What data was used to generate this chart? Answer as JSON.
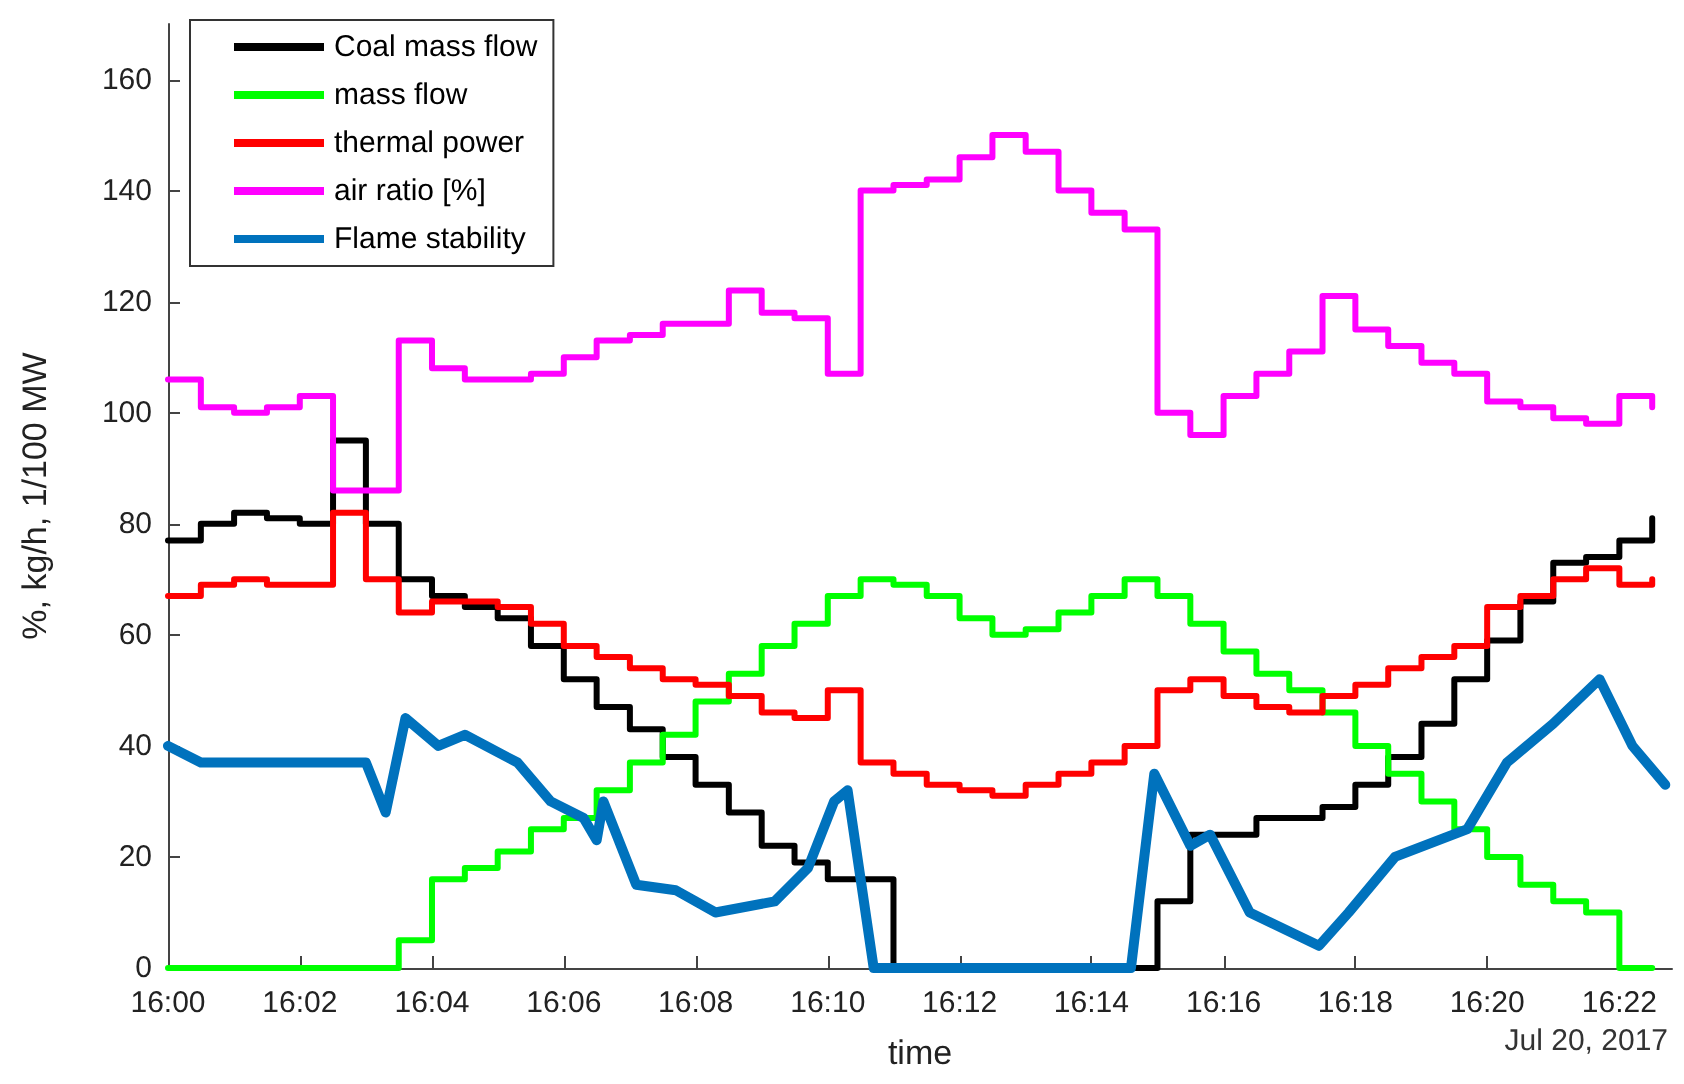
{
  "chart_data": {
    "type": "line",
    "xlabel": "time",
    "ylabel": "%, kg/h, 1/100 MW",
    "annotations": [
      "Jul 20, 2017"
    ],
    "x": [
      16,
      16.0083,
      16.0167,
      16.025,
      16.0333,
      16.0417,
      16.05,
      16.0583,
      16.0667,
      16.075,
      16.0833,
      16.0917,
      16.1,
      16.1083,
      16.1167,
      16.125,
      16.1333,
      16.1417,
      16.15,
      16.1583,
      16.1667,
      16.175,
      16.1833,
      16.1917,
      16.2,
      16.2083,
      16.2167,
      16.225,
      16.2333,
      16.2417,
      16.25,
      16.2583,
      16.2667,
      16.275,
      16.2833,
      16.2917,
      16.3,
      16.3083,
      16.3167,
      16.325,
      16.3333,
      16.3417,
      16.35,
      16.3583,
      16.3667,
      16.375
    ],
    "xlim": [
      16,
      16.38
    ],
    "xticks": [
      {
        "value": 16,
        "label": "16:00"
      },
      {
        "value": 16.0333,
        "label": "16:02"
      },
      {
        "value": 16.0667,
        "label": "16:04"
      },
      {
        "value": 16.1,
        "label": "16:06"
      },
      {
        "value": 16.1333,
        "label": "16:08"
      },
      {
        "value": 16.1667,
        "label": "16:10"
      },
      {
        "value": 16.2,
        "label": "16:12"
      },
      {
        "value": 16.2333,
        "label": "16:14"
      },
      {
        "value": 16.2667,
        "label": "16:16"
      },
      {
        "value": 16.3,
        "label": "16:18"
      },
      {
        "value": 16.3333,
        "label": "16:20"
      },
      {
        "value": 16.3667,
        "label": "16:22"
      }
    ],
    "ylim": [
      0,
      170
    ],
    "yticks": [
      0,
      20,
      40,
      60,
      80,
      100,
      120,
      140,
      160
    ],
    "grid": false,
    "legend": "top left",
    "series": [
      {
        "name": "Coal mass flow",
        "type": "step",
        "color": "#000000",
        "values": [
          77,
          80,
          82,
          81,
          80,
          95,
          80,
          70,
          67,
          65,
          63,
          58,
          52,
          47,
          43,
          38,
          33,
          28,
          22,
          19,
          16,
          16,
          0,
          0,
          0,
          0,
          0,
          0,
          0,
          0,
          12,
          24,
          24,
          27,
          27,
          29,
          33,
          38,
          44,
          52,
          59,
          66,
          73,
          74,
          77,
          81
        ]
      },
      {
        "name": "mass flow",
        "type": "step",
        "color": "#00ff00",
        "values": [
          0,
          0,
          0,
          0,
          0,
          0,
          0,
          5,
          16,
          18,
          21,
          25,
          27,
          32,
          37,
          42,
          48,
          53,
          58,
          62,
          67,
          70,
          69,
          67,
          63,
          60,
          61,
          64,
          67,
          70,
          67,
          62,
          57,
          53,
          50,
          46,
          40,
          35,
          30,
          25,
          20,
          15,
          12,
          10,
          0,
          0
        ]
      },
      {
        "name": "thermal power",
        "type": "step",
        "color": "#ff0000",
        "values": [
          67,
          69,
          70,
          69,
          69,
          82,
          70,
          64,
          66,
          66,
          65,
          62,
          58,
          56,
          54,
          52,
          51,
          49,
          46,
          45,
          50,
          37,
          35,
          33,
          32,
          31,
          33,
          35,
          37,
          40,
          50,
          52,
          49,
          47,
          46,
          49,
          51,
          54,
          56,
          58,
          65,
          67,
          70,
          72,
          69,
          70
        ]
      },
      {
        "name": "air ratio [%]",
        "type": "step",
        "color": "#ff00ff",
        "values": [
          106,
          101,
          100,
          101,
          103,
          86,
          86,
          113,
          108,
          106,
          106,
          107,
          110,
          113,
          114,
          116,
          116,
          122,
          118,
          117,
          107,
          140,
          141,
          142,
          146,
          150,
          147,
          140,
          136,
          133,
          100,
          96,
          103,
          107,
          111,
          121,
          115,
          112,
          109,
          107,
          102,
          101,
          99,
          98,
          103,
          101
        ]
      },
      {
        "name": "Flame stability",
        "color": "#0072bd",
        "x": [
          16,
          16.0083,
          16.05,
          16.055,
          16.06,
          16.0683,
          16.075,
          16.0883,
          16.0967,
          16.105,
          16.1083,
          16.11,
          16.1183,
          16.1283,
          16.1383,
          16.1533,
          16.1617,
          16.1683,
          16.1717,
          16.1783,
          16.2433,
          16.2492,
          16.2583,
          16.2633,
          16.2733,
          16.2908,
          16.2983,
          16.31,
          16.3283,
          16.3383,
          16.35,
          16.3617,
          16.37,
          16.3783
        ],
        "values": [
          40,
          37,
          37,
          28,
          45,
          40,
          42,
          37,
          30,
          27,
          23,
          30,
          15,
          14,
          10,
          12,
          18,
          30,
          32,
          0,
          0,
          35,
          22,
          24,
          10,
          4,
          10,
          20,
          25,
          37,
          44,
          52,
          40,
          33
        ]
      }
    ]
  }
}
